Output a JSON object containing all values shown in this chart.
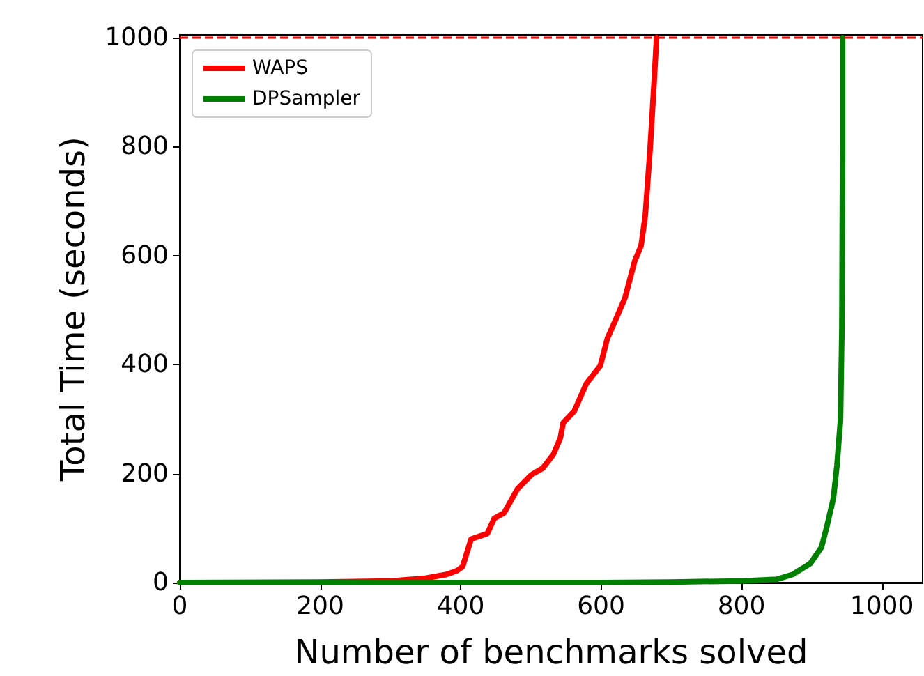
{
  "chart_data": {
    "type": "line",
    "xlabel": "Number of benchmarks solved",
    "ylabel": "Total Time (seconds)",
    "xlim": [
      0,
      1058
    ],
    "ylim": [
      0,
      1005
    ],
    "xticks": [
      0,
      200,
      400,
      600,
      800,
      1000
    ],
    "yticks": [
      0,
      200,
      400,
      600,
      800,
      1000
    ],
    "legend": "top left",
    "grid": false,
    "marker": "none",
    "line_style": "solid",
    "ref_lines": [
      {
        "axis": "y",
        "value": 1000,
        "color": "#ff0000",
        "line_style": "dashed"
      }
    ],
    "series": [
      {
        "name": "WAPS",
        "color": "#ff0000",
        "x": [
          0,
          200,
          300,
          350,
          380,
          395,
          403,
          415,
          438,
          448,
          462,
          481,
          501,
          517,
          532,
          542,
          546,
          562,
          579,
          599,
          609,
          620,
          634,
          648,
          657,
          663,
          670,
          675,
          679,
          679
        ],
        "values": [
          0,
          1,
          3,
          8,
          15,
          22,
          30,
          80,
          90,
          118,
          128,
          172,
          198,
          210,
          235,
          265,
          293,
          315,
          365,
          398,
          448,
          480,
          522,
          590,
          618,
          673,
          798,
          905,
          998,
          1000
        ]
      },
      {
        "name": "DPSampler",
        "color": "#008000",
        "x": [
          0,
          600,
          700,
          800,
          850,
          873,
          898,
          914,
          922,
          931,
          936,
          941,
          943,
          944,
          944
        ],
        "values": [
          0,
          0,
          1,
          3,
          6,
          15,
          35,
          65,
          105,
          155,
          215,
          298,
          465,
          798,
          1000
        ]
      }
    ]
  }
}
